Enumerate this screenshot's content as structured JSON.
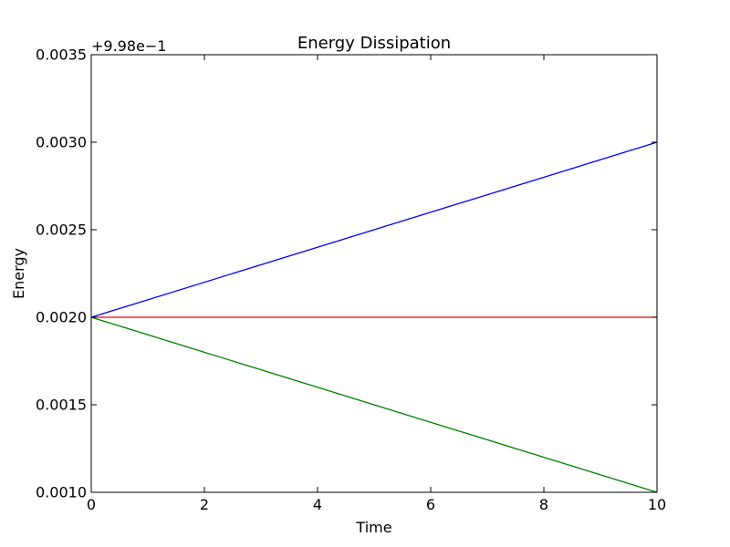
{
  "chart_data": {
    "type": "line",
    "title": "Energy Dissipation",
    "xlabel": "Time",
    "ylabel": "Energy",
    "offset_label": "+9.98e−1",
    "xlim": [
      0,
      10
    ],
    "ylim": [
      0.001,
      0.0035
    ],
    "xticks": [
      0,
      2,
      4,
      6,
      8,
      10
    ],
    "xtick_labels": [
      "0",
      "2",
      "4",
      "6",
      "8",
      "10"
    ],
    "yticks": [
      0.001,
      0.0015,
      0.002,
      0.0025,
      0.003,
      0.0035
    ],
    "ytick_labels": [
      "0.0010",
      "0.0015",
      "0.0020",
      "0.0025",
      "0.0030",
      "0.0035"
    ],
    "grid": false,
    "series": [
      {
        "color": "#0000ff",
        "x": [
          0,
          10
        ],
        "y": [
          0.002,
          0.003
        ]
      },
      {
        "color": "#ff0000",
        "x": [
          0,
          10
        ],
        "y": [
          0.002,
          0.002
        ]
      },
      {
        "color": "#008000",
        "x": [
          0,
          10
        ],
        "y": [
          0.002,
          0.001
        ]
      }
    ]
  }
}
